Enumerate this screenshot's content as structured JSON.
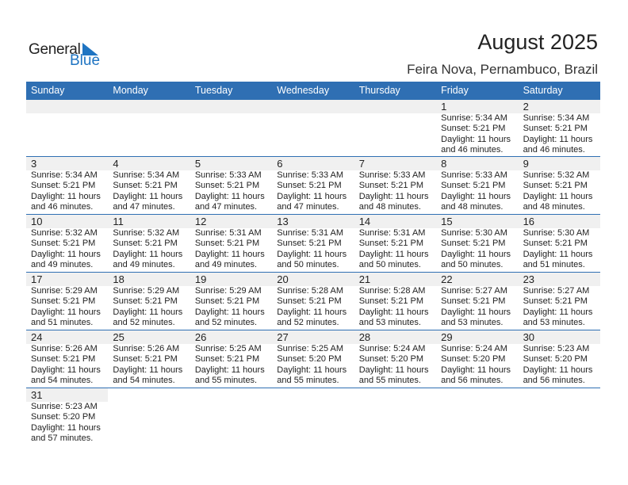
{
  "logo": {
    "text_general": "General",
    "text_blue": "Blue"
  },
  "title": "August 2025",
  "location": "Feira Nova, Pernambuco, Brazil",
  "colors": {
    "header": "#2f6fb3",
    "date_band": "#f0f0f0",
    "logo_blue": "#1f74c2"
  },
  "weekdays": [
    "Sunday",
    "Monday",
    "Tuesday",
    "Wednesday",
    "Thursday",
    "Friday",
    "Saturday"
  ],
  "weeks": [
    [
      null,
      null,
      null,
      null,
      null,
      {
        "day": "1",
        "sunrise": "Sunrise: 5:34 AM",
        "sunset": "Sunset: 5:21 PM",
        "daylight": "Daylight: 11 hours",
        "minutes": "and 46 minutes."
      },
      {
        "day": "2",
        "sunrise": "Sunrise: 5:34 AM",
        "sunset": "Sunset: 5:21 PM",
        "daylight": "Daylight: 11 hours",
        "minutes": "and 46 minutes."
      }
    ],
    [
      {
        "day": "3",
        "sunrise": "Sunrise: 5:34 AM",
        "sunset": "Sunset: 5:21 PM",
        "daylight": "Daylight: 11 hours",
        "minutes": "and 46 minutes."
      },
      {
        "day": "4",
        "sunrise": "Sunrise: 5:34 AM",
        "sunset": "Sunset: 5:21 PM",
        "daylight": "Daylight: 11 hours",
        "minutes": "and 47 minutes."
      },
      {
        "day": "5",
        "sunrise": "Sunrise: 5:33 AM",
        "sunset": "Sunset: 5:21 PM",
        "daylight": "Daylight: 11 hours",
        "minutes": "and 47 minutes."
      },
      {
        "day": "6",
        "sunrise": "Sunrise: 5:33 AM",
        "sunset": "Sunset: 5:21 PM",
        "daylight": "Daylight: 11 hours",
        "minutes": "and 47 minutes."
      },
      {
        "day": "7",
        "sunrise": "Sunrise: 5:33 AM",
        "sunset": "Sunset: 5:21 PM",
        "daylight": "Daylight: 11 hours",
        "minutes": "and 48 minutes."
      },
      {
        "day": "8",
        "sunrise": "Sunrise: 5:33 AM",
        "sunset": "Sunset: 5:21 PM",
        "daylight": "Daylight: 11 hours",
        "minutes": "and 48 minutes."
      },
      {
        "day": "9",
        "sunrise": "Sunrise: 5:32 AM",
        "sunset": "Sunset: 5:21 PM",
        "daylight": "Daylight: 11 hours",
        "minutes": "and 48 minutes."
      }
    ],
    [
      {
        "day": "10",
        "sunrise": "Sunrise: 5:32 AM",
        "sunset": "Sunset: 5:21 PM",
        "daylight": "Daylight: 11 hours",
        "minutes": "and 49 minutes."
      },
      {
        "day": "11",
        "sunrise": "Sunrise: 5:32 AM",
        "sunset": "Sunset: 5:21 PM",
        "daylight": "Daylight: 11 hours",
        "minutes": "and 49 minutes."
      },
      {
        "day": "12",
        "sunrise": "Sunrise: 5:31 AM",
        "sunset": "Sunset: 5:21 PM",
        "daylight": "Daylight: 11 hours",
        "minutes": "and 49 minutes."
      },
      {
        "day": "13",
        "sunrise": "Sunrise: 5:31 AM",
        "sunset": "Sunset: 5:21 PM",
        "daylight": "Daylight: 11 hours",
        "minutes": "and 50 minutes."
      },
      {
        "day": "14",
        "sunrise": "Sunrise: 5:31 AM",
        "sunset": "Sunset: 5:21 PM",
        "daylight": "Daylight: 11 hours",
        "minutes": "and 50 minutes."
      },
      {
        "day": "15",
        "sunrise": "Sunrise: 5:30 AM",
        "sunset": "Sunset: 5:21 PM",
        "daylight": "Daylight: 11 hours",
        "minutes": "and 50 minutes."
      },
      {
        "day": "16",
        "sunrise": "Sunrise: 5:30 AM",
        "sunset": "Sunset: 5:21 PM",
        "daylight": "Daylight: 11 hours",
        "minutes": "and 51 minutes."
      }
    ],
    [
      {
        "day": "17",
        "sunrise": "Sunrise: 5:29 AM",
        "sunset": "Sunset: 5:21 PM",
        "daylight": "Daylight: 11 hours",
        "minutes": "and 51 minutes."
      },
      {
        "day": "18",
        "sunrise": "Sunrise: 5:29 AM",
        "sunset": "Sunset: 5:21 PM",
        "daylight": "Daylight: 11 hours",
        "minutes": "and 52 minutes."
      },
      {
        "day": "19",
        "sunrise": "Sunrise: 5:29 AM",
        "sunset": "Sunset: 5:21 PM",
        "daylight": "Daylight: 11 hours",
        "minutes": "and 52 minutes."
      },
      {
        "day": "20",
        "sunrise": "Sunrise: 5:28 AM",
        "sunset": "Sunset: 5:21 PM",
        "daylight": "Daylight: 11 hours",
        "minutes": "and 52 minutes."
      },
      {
        "day": "21",
        "sunrise": "Sunrise: 5:28 AM",
        "sunset": "Sunset: 5:21 PM",
        "daylight": "Daylight: 11 hours",
        "minutes": "and 53 minutes."
      },
      {
        "day": "22",
        "sunrise": "Sunrise: 5:27 AM",
        "sunset": "Sunset: 5:21 PM",
        "daylight": "Daylight: 11 hours",
        "minutes": "and 53 minutes."
      },
      {
        "day": "23",
        "sunrise": "Sunrise: 5:27 AM",
        "sunset": "Sunset: 5:21 PM",
        "daylight": "Daylight: 11 hours",
        "minutes": "and 53 minutes."
      }
    ],
    [
      {
        "day": "24",
        "sunrise": "Sunrise: 5:26 AM",
        "sunset": "Sunset: 5:21 PM",
        "daylight": "Daylight: 11 hours",
        "minutes": "and 54 minutes."
      },
      {
        "day": "25",
        "sunrise": "Sunrise: 5:26 AM",
        "sunset": "Sunset: 5:21 PM",
        "daylight": "Daylight: 11 hours",
        "minutes": "and 54 minutes."
      },
      {
        "day": "26",
        "sunrise": "Sunrise: 5:25 AM",
        "sunset": "Sunset: 5:21 PM",
        "daylight": "Daylight: 11 hours",
        "minutes": "and 55 minutes."
      },
      {
        "day": "27",
        "sunrise": "Sunrise: 5:25 AM",
        "sunset": "Sunset: 5:20 PM",
        "daylight": "Daylight: 11 hours",
        "minutes": "and 55 minutes."
      },
      {
        "day": "28",
        "sunrise": "Sunrise: 5:24 AM",
        "sunset": "Sunset: 5:20 PM",
        "daylight": "Daylight: 11 hours",
        "minutes": "and 55 minutes."
      },
      {
        "day": "29",
        "sunrise": "Sunrise: 5:24 AM",
        "sunset": "Sunset: 5:20 PM",
        "daylight": "Daylight: 11 hours",
        "minutes": "and 56 minutes."
      },
      {
        "day": "30",
        "sunrise": "Sunrise: 5:23 AM",
        "sunset": "Sunset: 5:20 PM",
        "daylight": "Daylight: 11 hours",
        "minutes": "and 56 minutes."
      }
    ],
    [
      {
        "day": "31",
        "sunrise": "Sunrise: 5:23 AM",
        "sunset": "Sunset: 5:20 PM",
        "daylight": "Daylight: 11 hours",
        "minutes": "and 57 minutes."
      },
      null,
      null,
      null,
      null,
      null,
      null
    ]
  ]
}
